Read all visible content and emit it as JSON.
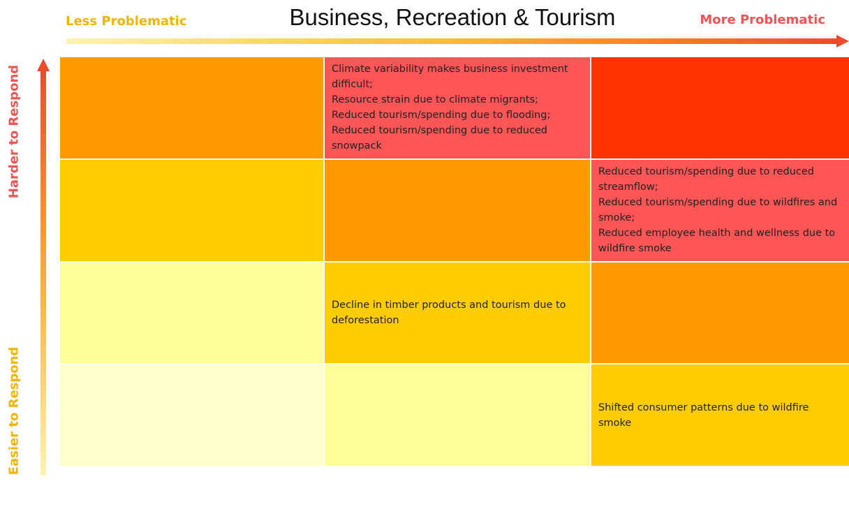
{
  "title": "Business, Recreation & Tourism",
  "x_axis": {
    "low_label": "Less Problematic",
    "high_label": "More Problematic"
  },
  "y_axis": {
    "high_label": "Harder to Respond",
    "low_label": "Easier to Respond"
  },
  "grid": {
    "rows": [
      [
        {
          "color": "#ff9900",
          "items": []
        },
        {
          "color": "#fe5656",
          "items": [
            "Climate variability makes business investment difficult;",
            "Resource strain due to climate migrants;",
            "Reduced tourism/spending due to flooding;",
            "Reduced tourism/spending due to reduced snowpack"
          ]
        },
        {
          "color": "#ff3300",
          "items": []
        }
      ],
      [
        {
          "color": "#ffcc00",
          "items": []
        },
        {
          "color": "#ff9900",
          "items": []
        },
        {
          "color": "#fe5656",
          "items": [
            "Reduced tourism/spending due to reduced streamflow;",
            "Reduced tourism/spending due to wildfires and smoke;",
            "Reduced employee health and wellness due to wildfire smoke"
          ]
        }
      ],
      [
        {
          "color": "#ffff99",
          "items": []
        },
        {
          "color": "#ffcc00",
          "items": [
            "Decline in timber products and tourism due to deforestation"
          ]
        },
        {
          "color": "#ff9900",
          "items": []
        }
      ],
      [
        {
          "color": "#ffffcc",
          "items": []
        },
        {
          "color": "#ffff99",
          "items": []
        },
        {
          "color": "#ffcc00",
          "items": [
            "Shifted consumer patterns due to wildfire smoke"
          ]
        }
      ]
    ]
  }
}
